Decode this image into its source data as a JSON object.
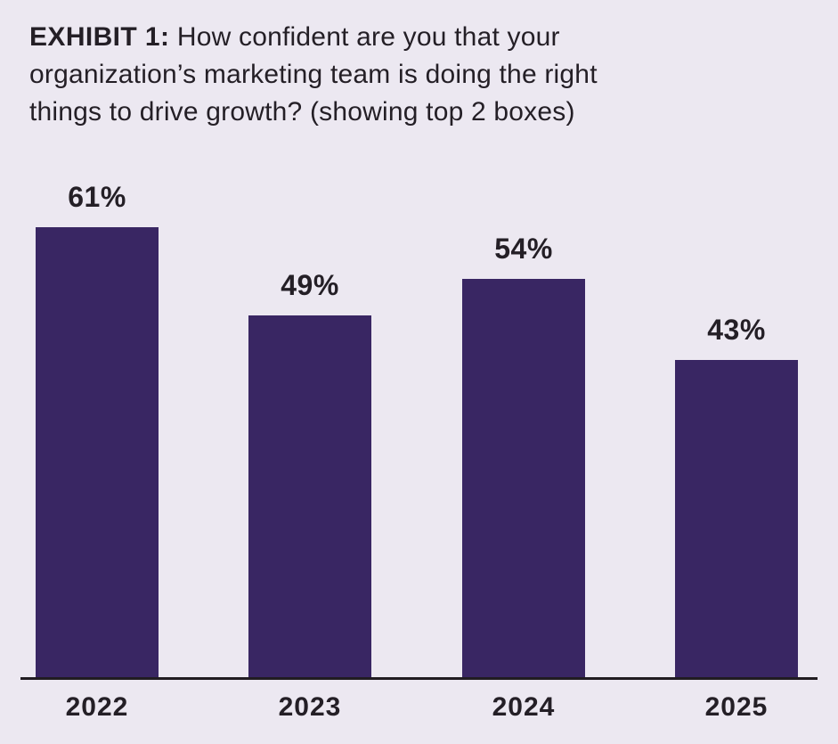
{
  "page": {
    "background_color": "#ECE8F1",
    "text_color": "#241F26",
    "axis_color": "#211C21"
  },
  "title": {
    "prefix": "EXHIBIT 1:",
    "line1_rest": "How confident are you that your",
    "line2": "organization’s marketing team is doing the right",
    "line3": "things to drive growth? (showing top 2 boxes)",
    "full_text": "EXHIBIT 1: How confident are you that your organization’s marketing team is doing the right things to drive growth? (showing top 2 boxes)"
  },
  "chart_data": {
    "type": "bar",
    "title": "EXHIBIT 1: How confident are you that your organization’s marketing team is doing the right things to drive growth? (showing top 2 boxes)",
    "categories": [
      "2022",
      "2023",
      "2024",
      "2025"
    ],
    "values": [
      61,
      49,
      54,
      43
    ],
    "value_labels": [
      "61%",
      "49%",
      "54%",
      "43%"
    ],
    "xlabel": "",
    "ylabel": "",
    "ylim": [
      0,
      70
    ],
    "grid": false,
    "legend": null,
    "y_axis_shown": false,
    "bar_color": "#392663",
    "label_color": "#241F26"
  }
}
